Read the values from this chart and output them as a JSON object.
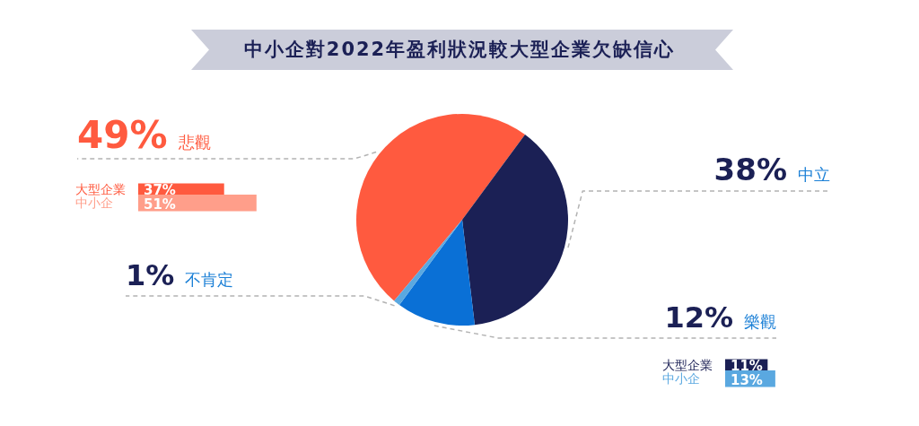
{
  "chart_data": [
    {
      "type": "pie",
      "title": "中小企對2022年盈利狀況較大型企業欠缺信心",
      "categories": [
        "悲觀",
        "中立",
        "樂觀",
        "不肯定"
      ],
      "values": [
        49,
        38,
        12,
        1
      ],
      "colors": [
        "#ff5a3f",
        "#1b2055",
        "#0a70d6",
        "#5aa8e0"
      ],
      "value_labels": [
        "49%",
        "38%",
        "12%",
        "1%"
      ]
    },
    {
      "type": "bar",
      "orientation": "horizontal",
      "categories": [
        "大型企業",
        "中小企"
      ],
      "values": [
        37,
        51
      ],
      "colors": [
        "#ff5a3f",
        "#ff9e8a"
      ],
      "value_labels": [
        "37%",
        "51%"
      ],
      "tick_labels": "y"
    },
    {
      "type": "bar",
      "orientation": "horizontal",
      "categories": [
        "大型企業",
        "中小企"
      ],
      "values": [
        11,
        13
      ],
      "colors": [
        "#1b2055",
        "#5aa8e0"
      ],
      "value_labels": [
        "11%",
        "13%"
      ],
      "tick_labels": "y"
    }
  ]
}
